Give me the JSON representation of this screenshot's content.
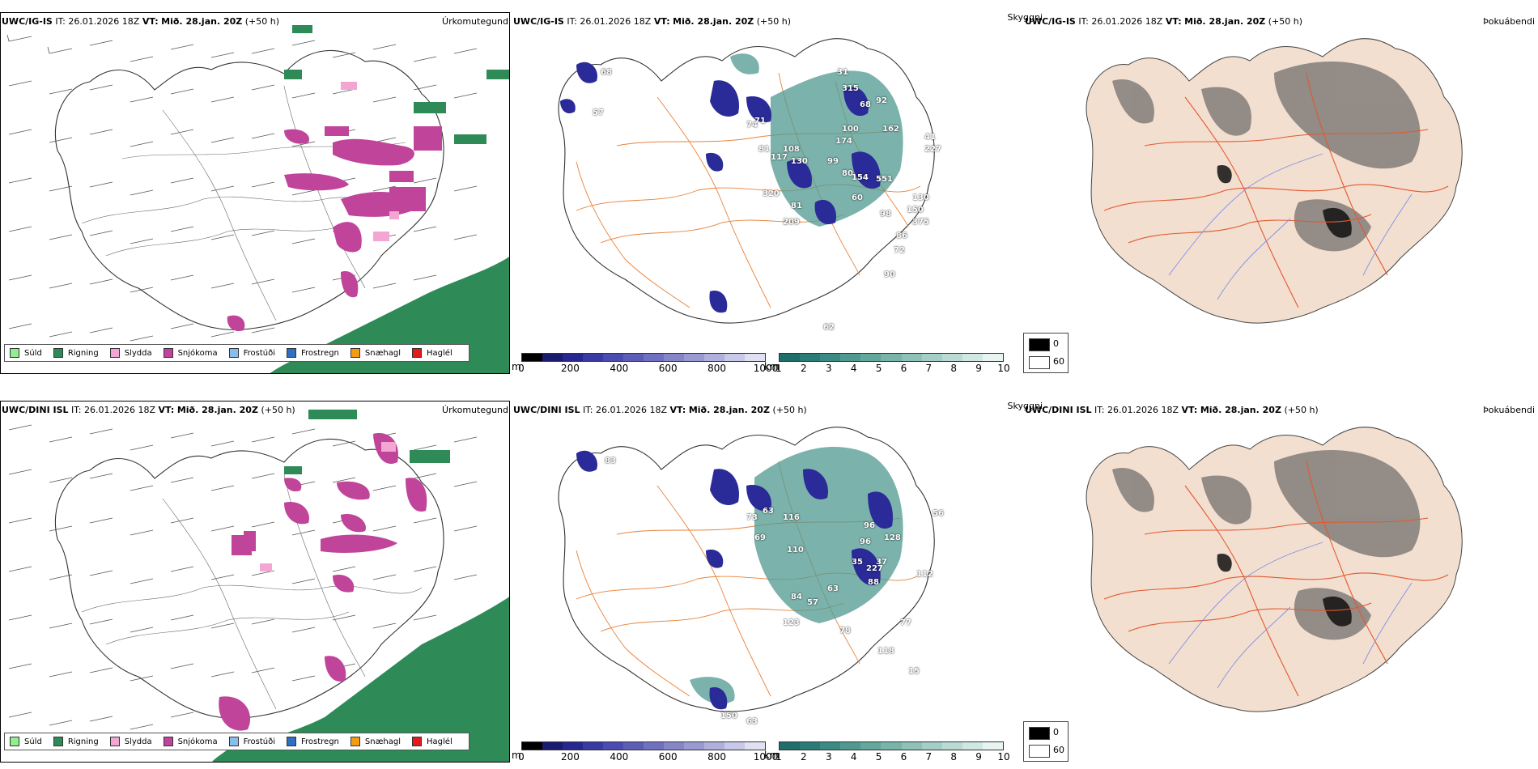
{
  "rows": [
    {
      "header": {
        "model": "UWC/IG-IS",
        "it": "IT: 26.01.2026 18Z",
        "vt_label": "VT:",
        "vt": "Mið. 28.jan. 20Z",
        "lead": "(+50 h)"
      },
      "cloud_numbers": [
        "68",
        "57",
        "74",
        "71",
        "81",
        "108",
        "130",
        "117",
        "31",
        "315",
        "68",
        "92",
        "162",
        "41",
        "174",
        "99",
        "227",
        "80",
        "551",
        "154",
        "98",
        "150",
        "375",
        "86",
        "72",
        "90",
        "81",
        "62",
        "209",
        "320",
        "100",
        "60",
        "130"
      ]
    },
    {
      "header": {
        "model": "UWC/DINI ISL",
        "it": "IT: 26.01.2026 18Z",
        "vt_label": "VT:",
        "vt": "Mið. 28.jan. 20Z",
        "lead": "(+50 h)"
      },
      "cloud_numbers": [
        "83",
        "73",
        "63",
        "69",
        "116",
        "110",
        "96",
        "128",
        "56",
        "37",
        "227",
        "112",
        "35",
        "88",
        "63",
        "84",
        "57",
        "123",
        "78",
        "77",
        "118",
        "15",
        "150",
        "63",
        "96"
      ]
    }
  ],
  "panels": {
    "precip_title": "Úrkomutegund",
    "cloud_title": "Skyggni",
    "fog_title": "Þokuábendi"
  },
  "precip_legend": [
    {
      "label": "Súld",
      "color": "#90ee90"
    },
    {
      "label": "Rigning",
      "color": "#2e8b57"
    },
    {
      "label": "Slydda",
      "color": "#f4a6d2"
    },
    {
      "label": "Snjókoma",
      "color": "#c0449a"
    },
    {
      "label": "Frostúði",
      "color": "#87bdf0"
    },
    {
      "label": "Frostregn",
      "color": "#2f6fbf"
    },
    {
      "label": "Snæhagl",
      "color": "#f39c12"
    },
    {
      "label": "Haglél",
      "color": "#e31a1c"
    }
  ],
  "cloudbase_bar": {
    "unit": "m",
    "ticks": [
      "0",
      "200",
      "400",
      "600",
      "800",
      "1000"
    ],
    "colors": [
      "#000000",
      "#1a1a6e",
      "#27278f",
      "#3a3aa5",
      "#4b4bb0",
      "#5d5db8",
      "#7070c0",
      "#8585c8",
      "#9a9ad2",
      "#b0b0dc",
      "#c8c8e8",
      "#e0e0f2"
    ]
  },
  "cloudtop_bar": {
    "unit": "km",
    "ticks": [
      "1",
      "2",
      "3",
      "4",
      "5",
      "6",
      "7",
      "8",
      "9",
      "10"
    ],
    "colors": [
      "#1e6e6a",
      "#2a7c77",
      "#3b8b84",
      "#4f9990",
      "#63a79d",
      "#78b4aa",
      "#8ec1b8",
      "#a4cec6",
      "#badbd4",
      "#d0e8e2",
      "#e8f4f1"
    ]
  },
  "fog_legend": {
    "high": "0",
    "low": "60"
  },
  "colors": {
    "land_fog": "#f3dfcf",
    "roads": "#e2582f",
    "rivers": "#7f8fe8",
    "cloud_roads": "#e8823a",
    "rain_green": "#2e8b57",
    "snow_magenta": "#c0449a"
  }
}
